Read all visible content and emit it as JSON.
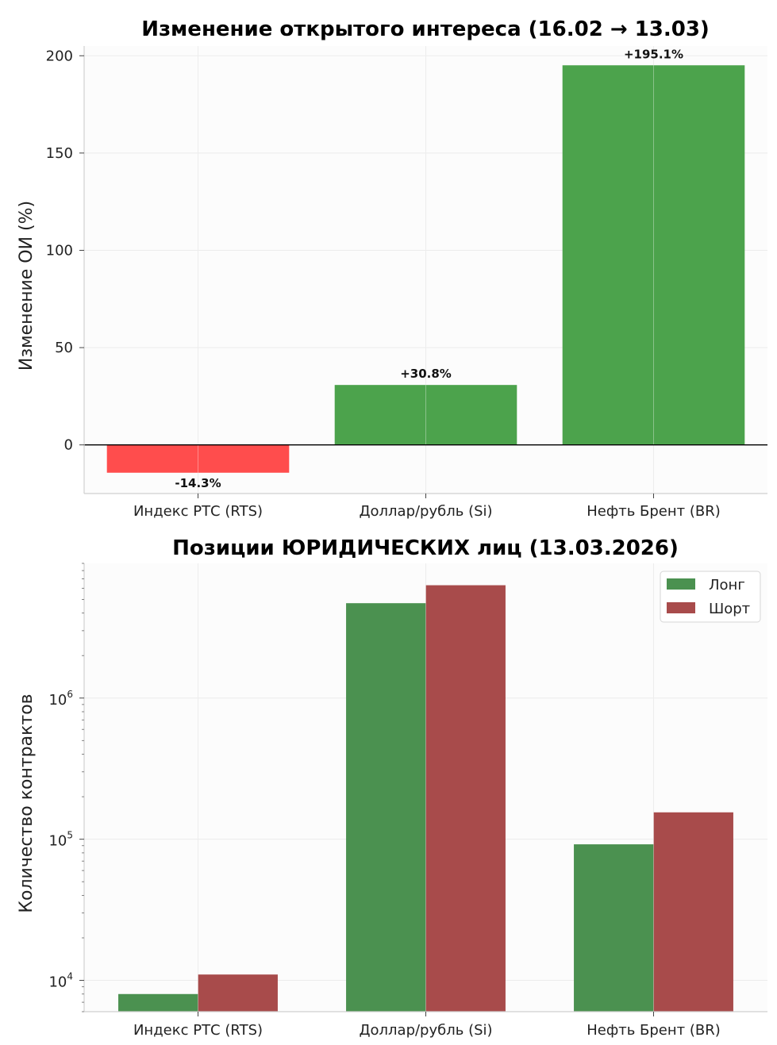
{
  "chart_data": [
    {
      "type": "bar",
      "title": "Изменение открытого интереса (16.02 → 13.03)",
      "ylabel": "Изменение ОИ (%)",
      "xlabel": "",
      "categories": [
        "Индекс РТС (RTS)",
        "Доллар/рубль (Si)",
        "Нефть Брент (BR)"
      ],
      "values": [
        -14.3,
        30.8,
        195.1
      ],
      "data_labels": [
        "-14.3%",
        "+30.8%",
        "+195.1%"
      ],
      "ylim": [
        -25,
        205
      ],
      "yticks": [
        0,
        50,
        100,
        150,
        200
      ],
      "ytick_labels": [
        "0",
        "50",
        "100",
        "150",
        "200"
      ],
      "colors": {
        "positive": "#4ca34c",
        "negative": "#ff4d4d"
      },
      "grid": true
    },
    {
      "type": "bar",
      "title": "Позиции ЮРИДИЧЕСКИХ лиц (13.03.2026)",
      "ylabel": "Количество контрактов",
      "xlabel": "",
      "yscale": "log",
      "categories": [
        "Индекс РТС (RTS)",
        "Доллар/рубль (Si)",
        "Нефть Брент (BR)"
      ],
      "series": [
        {
          "name": "Лонг",
          "color": "#4b9150",
          "values": [
            8000,
            4700000,
            92000
          ]
        },
        {
          "name": "Шорт",
          "color": "#a84b4b",
          "values": [
            11000,
            6300000,
            155000
          ]
        }
      ],
      "ylim": [
        6000,
        9000000
      ],
      "yticks": [
        {
          "value": 10000,
          "base": "10",
          "exp": "4"
        },
        {
          "value": 100000,
          "base": "10",
          "exp": "5"
        },
        {
          "value": 1000000,
          "base": "10",
          "exp": "6"
        }
      ],
      "legend_position": "top-right",
      "grid": true
    }
  ]
}
